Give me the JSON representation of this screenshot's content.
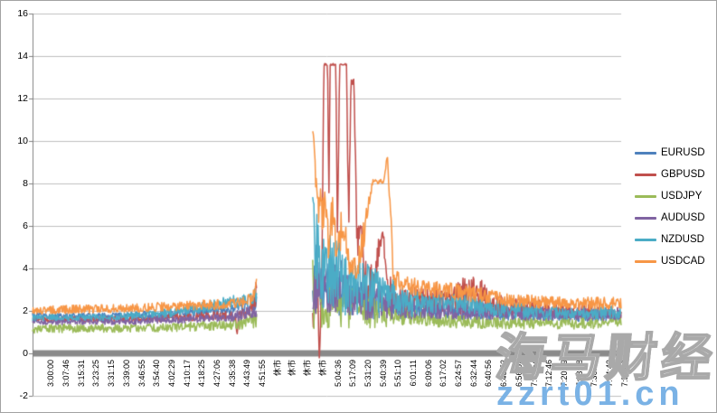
{
  "watermark": {
    "brand_text": "海马财经",
    "site_text": "zzrt01.cn",
    "brand_color": "#FFFFFF",
    "site_color": "#7AB2E5"
  },
  "chart_data": {
    "type": "line",
    "title": "",
    "xlabel": "",
    "ylabel": "",
    "grid": true,
    "legend_position": "right",
    "y_axis": {
      "min": -2,
      "max": 16,
      "step": 2,
      "tick_labels": [
        16,
        14,
        12,
        10,
        8,
        6,
        4,
        2,
        0,
        -2
      ]
    },
    "x_axis": {
      "closed_market_label": "休市",
      "tick_labels": [
        "3:00:00",
        "3:07:46",
        "3:15:31",
        "3:23:25",
        "3:31:15",
        "3:39:00",
        "3:46:55",
        "3:54:40",
        "4:02:29",
        "4:10:17",
        "4:18:25",
        "4:27:06",
        "4:35:38",
        "4:43:49",
        "4:51:55",
        "休市",
        "休市",
        "休市",
        "休市",
        "5:04:36",
        "5:17:09",
        "5:31:20",
        "5:40:39",
        "5:51:10",
        "6:01:11",
        "6:09:06",
        "6:17:02",
        "6:24:57",
        "6:32:44",
        "6:40:56",
        "6:48:53",
        "6:56:52",
        "7:04:54",
        "7:12:46",
        "7:20:49",
        "7:28:58",
        "7:36:49",
        "7:44:43",
        "7:52:42"
      ]
    },
    "gap_index_range": [
      14.85,
      18.55
    ],
    "series_note": "points are [tick_index, spread_value, noise_half_band] estimated from the chart",
    "series": [
      {
        "name": "EURUSD",
        "color": "#4F81BD",
        "points": [
          [
            0,
            1.75,
            0.15
          ],
          [
            5,
            1.75,
            0.15
          ],
          [
            9,
            1.85,
            0.2
          ],
          [
            12,
            2.0,
            0.2
          ],
          [
            14,
            2.15,
            0.25
          ],
          [
            14.85,
            2.5,
            0.5
          ],
          [
            18.6,
            3.8,
            1.6
          ],
          [
            19.2,
            3.2,
            1.3
          ],
          [
            20,
            2.9,
            1.1
          ],
          [
            21,
            2.7,
            1.0
          ],
          [
            22,
            2.5,
            0.9
          ],
          [
            23,
            2.4,
            0.8
          ],
          [
            24,
            2.2,
            0.7
          ],
          [
            25,
            2.1,
            0.5
          ],
          [
            26,
            2.0,
            0.4
          ],
          [
            28,
            1.95,
            0.35
          ],
          [
            30,
            1.85,
            0.3
          ],
          [
            33,
            1.8,
            0.28
          ],
          [
            36,
            1.75,
            0.25
          ],
          [
            39,
            1.75,
            0.25
          ]
        ]
      },
      {
        "name": "GBPUSD",
        "color": "#C0504D",
        "points": [
          [
            0,
            1.6,
            0.12
          ],
          [
            6,
            1.6,
            0.13
          ],
          [
            10,
            1.7,
            0.18
          ],
          [
            13,
            1.8,
            0.22
          ],
          [
            13.45,
            1.7,
            0.2
          ],
          [
            13.55,
            0.85,
            0.05
          ],
          [
            13.65,
            1.8,
            0.2
          ],
          [
            14.5,
            2.0,
            0.3
          ],
          [
            14.85,
            3.0,
            0.7
          ],
          [
            18.6,
            1.8,
            1.0
          ],
          [
            18.85,
            3.5,
            1.5
          ],
          [
            19.0,
            -0.3,
            0.1
          ],
          [
            19.15,
            3.0,
            1.0
          ],
          [
            19.3,
            13.6,
            0.05
          ],
          [
            19.55,
            13.6,
            0.05
          ],
          [
            19.63,
            7.0,
            0.5
          ],
          [
            19.72,
            13.6,
            0.05
          ],
          [
            20.1,
            13.6,
            0.05
          ],
          [
            20.2,
            5.5,
            0.8
          ],
          [
            20.35,
            13.6,
            0.05
          ],
          [
            20.8,
            13.6,
            0.05
          ],
          [
            20.95,
            6.0,
            1.0
          ],
          [
            21.1,
            12.8,
            0.15
          ],
          [
            21.3,
            12.8,
            0.15
          ],
          [
            21.5,
            5.0,
            1.0
          ],
          [
            21.8,
            6.3,
            0.4
          ],
          [
            22.0,
            3.5,
            1.0
          ],
          [
            22.5,
            3.2,
            1.0
          ],
          [
            23.2,
            5.9,
            0.3
          ],
          [
            23.5,
            3.0,
            0.8
          ],
          [
            24,
            2.7,
            0.7
          ],
          [
            25,
            2.6,
            0.6
          ],
          [
            26,
            2.5,
            0.5
          ],
          [
            27.5,
            2.5,
            0.6
          ],
          [
            28.6,
            2.7,
            0.9
          ],
          [
            29.7,
            2.8,
            0.9
          ],
          [
            30.5,
            2.3,
            0.5
          ],
          [
            32,
            2.2,
            0.45
          ],
          [
            34,
            2.1,
            0.4
          ],
          [
            36,
            2.0,
            0.35
          ],
          [
            38,
            1.95,
            0.3
          ],
          [
            39,
            1.9,
            0.3
          ]
        ]
      },
      {
        "name": "USDJPY",
        "color": "#9BBB59",
        "points": [
          [
            0,
            1.15,
            0.2
          ],
          [
            6,
            1.2,
            0.2
          ],
          [
            10,
            1.25,
            0.22
          ],
          [
            13,
            1.35,
            0.25
          ],
          [
            14.85,
            1.6,
            0.4
          ],
          [
            18.6,
            3.0,
            2.0
          ],
          [
            19.2,
            2.4,
            1.2
          ],
          [
            20,
            2.3,
            1.1
          ],
          [
            21,
            2.2,
            1.0
          ],
          [
            22,
            2.1,
            0.9
          ],
          [
            23,
            2.0,
            0.8
          ],
          [
            24,
            1.9,
            0.6
          ],
          [
            25,
            1.75,
            0.45
          ],
          [
            26,
            1.6,
            0.32
          ],
          [
            28,
            1.5,
            0.3
          ],
          [
            30,
            1.45,
            0.28
          ],
          [
            33,
            1.4,
            0.27
          ],
          [
            36,
            1.4,
            0.25
          ],
          [
            39,
            1.45,
            0.25
          ]
        ]
      },
      {
        "name": "AUDUSD",
        "color": "#8064A2",
        "points": [
          [
            0,
            1.48,
            0.13
          ],
          [
            6,
            1.5,
            0.15
          ],
          [
            10,
            1.6,
            0.18
          ],
          [
            13,
            1.7,
            0.2
          ],
          [
            14.85,
            1.95,
            0.35
          ],
          [
            18.6,
            3.2,
            1.4
          ],
          [
            19.3,
            2.9,
            1.2
          ],
          [
            20.3,
            3.3,
            1.4
          ],
          [
            21,
            2.8,
            1.1
          ],
          [
            22,
            2.6,
            1.0
          ],
          [
            23,
            2.5,
            0.9
          ],
          [
            24,
            2.3,
            0.7
          ],
          [
            25,
            2.2,
            0.6
          ],
          [
            26.5,
            2.1,
            0.45
          ],
          [
            29,
            2.0,
            0.4
          ],
          [
            32,
            1.9,
            0.35
          ],
          [
            35,
            1.85,
            0.3
          ],
          [
            39,
            1.85,
            0.3
          ]
        ]
      },
      {
        "name": "NZDUSD",
        "color": "#4BACC6",
        "points": [
          [
            0,
            1.68,
            0.15
          ],
          [
            5,
            1.7,
            0.15
          ],
          [
            9,
            1.9,
            0.22
          ],
          [
            11,
            2.1,
            0.28
          ],
          [
            13,
            2.4,
            0.3
          ],
          [
            14.5,
            2.55,
            0.3
          ],
          [
            14.85,
            2.8,
            0.4
          ],
          [
            18.58,
            7.4,
            0.2
          ],
          [
            18.75,
            5.0,
            1.8
          ],
          [
            19.2,
            3.8,
            1.8
          ],
          [
            19.8,
            4.2,
            2.0
          ],
          [
            20.5,
            3.4,
            1.6
          ],
          [
            21.2,
            3.0,
            1.3
          ],
          [
            22,
            3.3,
            1.4
          ],
          [
            22.8,
            2.9,
            1.0
          ],
          [
            23.6,
            2.7,
            0.9
          ],
          [
            24.5,
            2.5,
            0.8
          ],
          [
            25,
            2.4,
            0.7
          ],
          [
            26,
            2.35,
            0.5
          ],
          [
            27.5,
            2.45,
            0.5
          ],
          [
            29,
            2.3,
            0.45
          ],
          [
            31,
            2.1,
            0.4
          ],
          [
            33,
            1.95,
            0.35
          ],
          [
            35.5,
            1.85,
            0.3
          ],
          [
            37.5,
            1.9,
            0.3
          ],
          [
            39,
            1.95,
            0.3
          ]
        ]
      },
      {
        "name": "USDCAD",
        "color": "#F79646",
        "points": [
          [
            0,
            2.05,
            0.2
          ],
          [
            5,
            2.1,
            0.2
          ],
          [
            9,
            2.2,
            0.22
          ],
          [
            12,
            2.3,
            0.24
          ],
          [
            14,
            2.4,
            0.26
          ],
          [
            14.6,
            2.6,
            0.3
          ],
          [
            14.85,
            3.5,
            0.35
          ],
          [
            18.58,
            10.6,
            0.15
          ],
          [
            18.72,
            8.8,
            0.8
          ],
          [
            19.0,
            6.6,
            0.9
          ],
          [
            19.3,
            7.2,
            1.3
          ],
          [
            19.6,
            5.2,
            0.9
          ],
          [
            19.9,
            6.6,
            1.1
          ],
          [
            20.2,
            4.6,
            0.7
          ],
          [
            20.6,
            6.4,
            1.3
          ],
          [
            21.0,
            4.1,
            0.5
          ],
          [
            21.5,
            4.0,
            0.5
          ],
          [
            21.9,
            5.3,
            0.8
          ],
          [
            22.25,
            7.0,
            0.3
          ],
          [
            22.55,
            8.1,
            0.12
          ],
          [
            23.3,
            8.1,
            0.12
          ],
          [
            23.5,
            9.35,
            0.08
          ],
          [
            23.65,
            7.8,
            0.6
          ],
          [
            23.9,
            3.5,
            0.5
          ],
          [
            24.5,
            3.3,
            0.45
          ],
          [
            25,
            3.2,
            0.4
          ],
          [
            26,
            3.05,
            0.4
          ],
          [
            27.5,
            2.95,
            0.4
          ],
          [
            29,
            2.8,
            0.38
          ],
          [
            30.5,
            2.65,
            0.35
          ],
          [
            32,
            2.5,
            0.32
          ],
          [
            34,
            2.4,
            0.3
          ],
          [
            36,
            2.35,
            0.3
          ],
          [
            39,
            2.35,
            0.3
          ]
        ]
      }
    ],
    "style": {
      "gridline_color": "#BFBFBF",
      "axis_color": "#808080",
      "zero_band_color": "#8A8A8A"
    }
  }
}
